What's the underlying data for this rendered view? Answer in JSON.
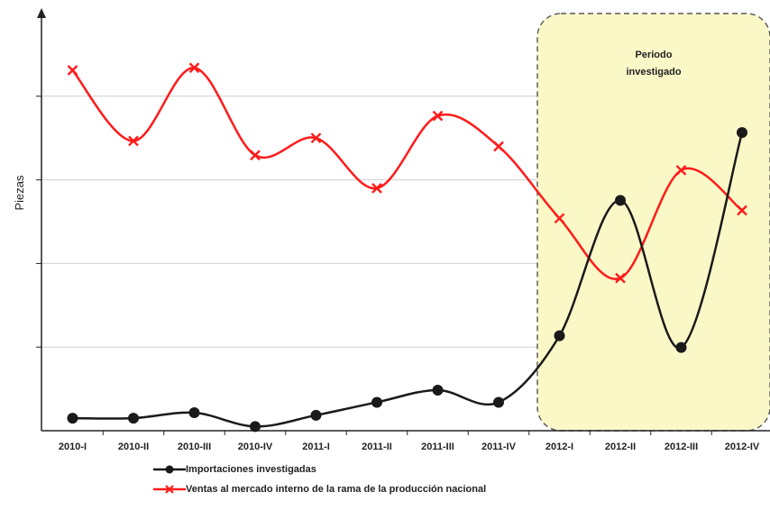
{
  "chart_data": {
    "type": "line",
    "xlabel": "",
    "ylabel": "Piezas",
    "categories": [
      "2010-I",
      "2010-II",
      "2010-III",
      "2010-IV",
      "2011-I",
      "2011-II",
      "2011-III",
      "2011-IV",
      "2012-I",
      "2012-II",
      "2012-III",
      "2012-IV"
    ],
    "ylim": [
      0,
      100
    ],
    "grid": "horizontal",
    "series": [
      {
        "name": "Importaciones investigadas",
        "color": "#1a1a1a",
        "marker": "circle",
        "values": [
          3.0,
          3.0,
          4.3,
          1.0,
          3.7,
          6.8,
          9.7,
          6.8,
          22.7,
          55.1,
          19.9,
          71.3
        ]
      },
      {
        "name": "Ventas al mercado interno de la rama de la producción nacional",
        "color": "#ff1a1a",
        "marker": "x",
        "values": [
          86.2,
          69.3,
          86.8,
          65.9,
          70.0,
          58.0,
          75.3,
          68.0,
          50.8,
          36.5,
          62.3,
          52.7
        ]
      }
    ],
    "annotations": [
      {
        "text_lines": [
          "Periodo",
          "investigado"
        ],
        "region_from": "2012-I",
        "region_to": "2012-IV",
        "fill": "#fbf8c8"
      }
    ]
  }
}
